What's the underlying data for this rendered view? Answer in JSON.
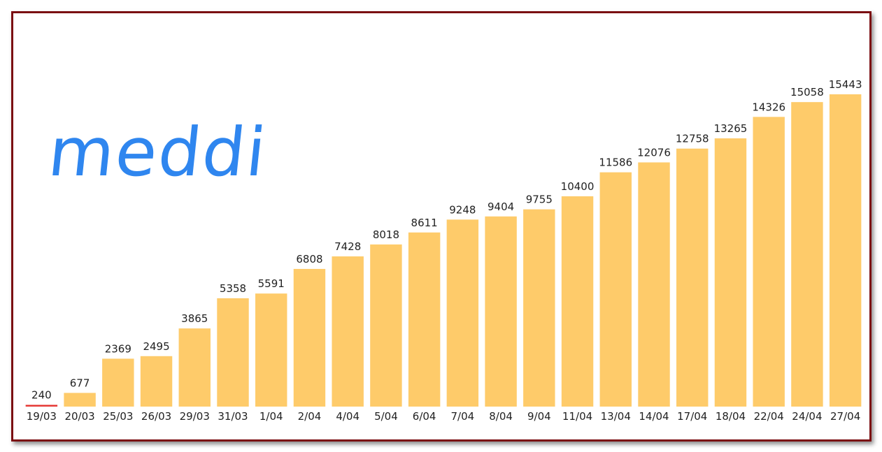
{
  "brand": {
    "logo_text": "meddi",
    "logo_color": "#2f86ef"
  },
  "colors": {
    "bar": "#fecb6a",
    "first_bar": "#e53935",
    "frame": "#7b0e12"
  },
  "chart_data": {
    "type": "bar",
    "categories": [
      "19/03",
      "20/03",
      "25/03",
      "26/03",
      "29/03",
      "31/03",
      "1/04",
      "2/04",
      "4/04",
      "5/04",
      "6/04",
      "7/04",
      "8/04",
      "9/04",
      "11/04",
      "13/04",
      "14/04",
      "17/04",
      "18/04",
      "22/04",
      "24/04",
      "27/04"
    ],
    "values": [
      240,
      677,
      2369,
      2495,
      3865,
      5358,
      5591,
      6808,
      7428,
      8018,
      8611,
      9248,
      9404,
      9755,
      10400,
      11586,
      12076,
      12758,
      13265,
      14326,
      15058,
      15443
    ],
    "value_labels": [
      "240",
      "677",
      "2369",
      "2495",
      "3865",
      "5358",
      "5591",
      "6808",
      "7428",
      "8018",
      "8611",
      "9248",
      "9404",
      "9755",
      "10400",
      "11586",
      "12076",
      "12758",
      "13265",
      "14326",
      "15058",
      "15443"
    ],
    "title": "",
    "xlabel": "",
    "ylabel": "",
    "ylim": [
      0,
      15443
    ],
    "grid": false,
    "legend": "none"
  }
}
